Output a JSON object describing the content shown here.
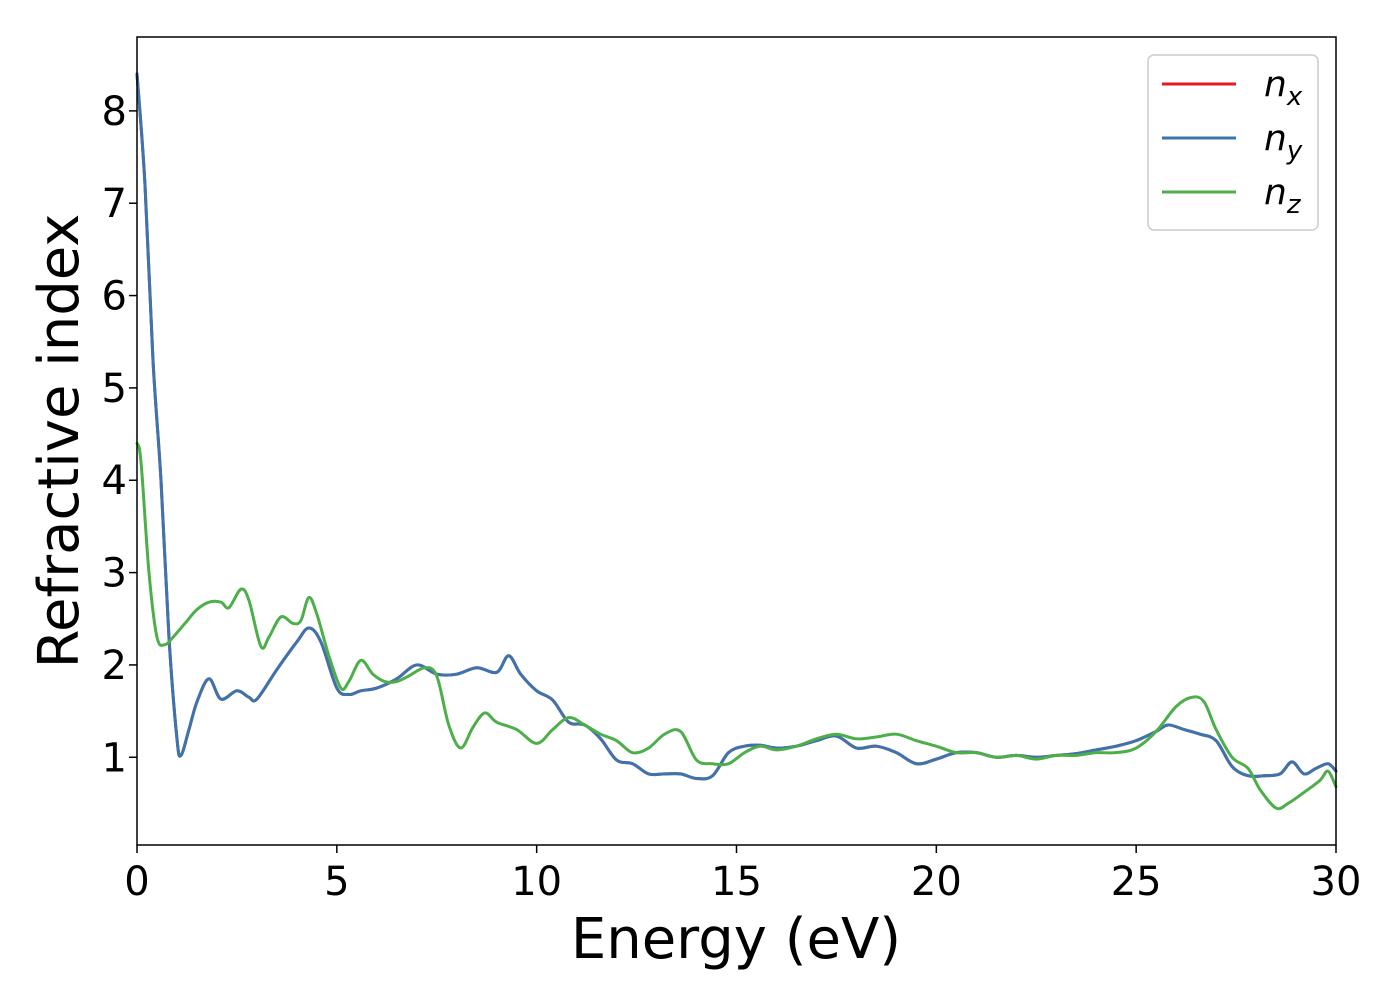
{
  "chart_data": {
    "type": "line",
    "title": "",
    "xlabel": "Energy (eV)",
    "ylabel": "Refractive index",
    "xlim": [
      0,
      30
    ],
    "ylim": [
      0.05,
      8.8
    ],
    "xticks": [
      "0",
      "5",
      "10",
      "15",
      "20",
      "25",
      "30"
    ],
    "yticks": [
      "1",
      "2",
      "3",
      "4",
      "5",
      "6",
      "7",
      "8"
    ],
    "grid": false,
    "legend_placement": "top-right",
    "series": [
      {
        "name": "n_x",
        "legend_base": "n",
        "legend_sub": "x",
        "color": "#e41a1c",
        "x": [
          0,
          0.2,
          0.4,
          0.6,
          0.8,
          1.0,
          1.1,
          1.3,
          1.5,
          1.8,
          2.1,
          2.5,
          2.8,
          3.0,
          3.5,
          4.0,
          4.3,
          4.6,
          5.0,
          5.3,
          5.6,
          6.0,
          6.5,
          7.0,
          7.5,
          8.0,
          8.5,
          9.0,
          9.3,
          9.6,
          10.0,
          10.4,
          10.8,
          11.2,
          11.6,
          12.0,
          12.4,
          12.8,
          13.2,
          13.6,
          14.0,
          14.4,
          14.8,
          15.2,
          15.6,
          16.0,
          16.5,
          17.0,
          17.5,
          18.0,
          18.5,
          19.0,
          19.5,
          20.0,
          20.5,
          21.0,
          21.5,
          22.0,
          22.5,
          23.0,
          23.5,
          24.0,
          24.5,
          25.0,
          25.5,
          25.8,
          26.2,
          26.6,
          27.0,
          27.4,
          27.8,
          28.2,
          28.6,
          28.9,
          29.2,
          29.5,
          29.8,
          30.0
        ],
        "values": [
          8.4,
          7.2,
          5.3,
          4.0,
          2.3,
          1.2,
          1.02,
          1.3,
          1.6,
          1.85,
          1.63,
          1.72,
          1.65,
          1.63,
          1.95,
          2.25,
          2.4,
          2.25,
          1.75,
          1.68,
          1.72,
          1.75,
          1.85,
          2.0,
          1.9,
          1.9,
          1.97,
          1.92,
          2.1,
          1.9,
          1.72,
          1.62,
          1.38,
          1.35,
          1.2,
          0.97,
          0.93,
          0.82,
          0.82,
          0.82,
          0.77,
          0.8,
          1.05,
          1.12,
          1.13,
          1.1,
          1.12,
          1.18,
          1.23,
          1.1,
          1.12,
          1.05,
          0.93,
          0.98,
          1.05,
          1.05,
          1.0,
          1.02,
          1.0,
          1.02,
          1.04,
          1.08,
          1.12,
          1.18,
          1.28,
          1.35,
          1.3,
          1.25,
          1.18,
          0.9,
          0.8,
          0.8,
          0.82,
          0.95,
          0.82,
          0.88,
          0.93,
          0.85
        ]
      },
      {
        "name": "n_y",
        "legend_base": "n",
        "legend_sub": "y",
        "color": "#3b75af",
        "x": [
          0,
          0.2,
          0.4,
          0.6,
          0.8,
          1.0,
          1.1,
          1.3,
          1.5,
          1.8,
          2.1,
          2.5,
          2.8,
          3.0,
          3.5,
          4.0,
          4.3,
          4.6,
          5.0,
          5.3,
          5.6,
          6.0,
          6.5,
          7.0,
          7.5,
          8.0,
          8.5,
          9.0,
          9.3,
          9.6,
          10.0,
          10.4,
          10.8,
          11.2,
          11.6,
          12.0,
          12.4,
          12.8,
          13.2,
          13.6,
          14.0,
          14.4,
          14.8,
          15.2,
          15.6,
          16.0,
          16.5,
          17.0,
          17.5,
          18.0,
          18.5,
          19.0,
          19.5,
          20.0,
          20.5,
          21.0,
          21.5,
          22.0,
          22.5,
          23.0,
          23.5,
          24.0,
          24.5,
          25.0,
          25.5,
          25.8,
          26.2,
          26.6,
          27.0,
          27.4,
          27.8,
          28.2,
          28.6,
          28.9,
          29.2,
          29.5,
          29.8,
          30.0
        ],
        "values": [
          8.4,
          7.2,
          5.3,
          4.0,
          2.3,
          1.2,
          1.02,
          1.3,
          1.6,
          1.85,
          1.63,
          1.72,
          1.65,
          1.63,
          1.95,
          2.25,
          2.4,
          2.25,
          1.75,
          1.68,
          1.72,
          1.75,
          1.85,
          2.0,
          1.9,
          1.9,
          1.97,
          1.92,
          2.1,
          1.9,
          1.72,
          1.62,
          1.38,
          1.35,
          1.2,
          0.97,
          0.93,
          0.82,
          0.82,
          0.82,
          0.77,
          0.8,
          1.05,
          1.12,
          1.13,
          1.1,
          1.12,
          1.18,
          1.23,
          1.1,
          1.12,
          1.05,
          0.93,
          0.98,
          1.05,
          1.05,
          1.0,
          1.02,
          1.0,
          1.02,
          1.04,
          1.08,
          1.12,
          1.18,
          1.28,
          1.35,
          1.3,
          1.25,
          1.18,
          0.9,
          0.8,
          0.8,
          0.82,
          0.95,
          0.82,
          0.88,
          0.93,
          0.85
        ]
      },
      {
        "name": "n_z",
        "legend_base": "n",
        "legend_sub": "z",
        "color": "#4daf4a",
        "x": [
          0,
          0.1,
          0.3,
          0.5,
          0.7,
          0.9,
          1.2,
          1.5,
          1.8,
          2.1,
          2.3,
          2.6,
          2.8,
          3.1,
          3.3,
          3.6,
          3.9,
          4.1,
          4.3,
          4.5,
          4.8,
          5.1,
          5.3,
          5.6,
          5.9,
          6.2,
          6.5,
          6.8,
          7.2,
          7.5,
          7.8,
          8.1,
          8.4,
          8.7,
          9.0,
          9.5,
          10.0,
          10.4,
          10.8,
          11.2,
          11.6,
          12.0,
          12.4,
          12.8,
          13.2,
          13.6,
          14.0,
          14.4,
          14.8,
          15.2,
          15.6,
          16.0,
          16.5,
          17.0,
          17.5,
          18.0,
          18.5,
          19.0,
          19.5,
          20.0,
          20.5,
          21.0,
          21.5,
          22.0,
          22.5,
          23.0,
          23.5,
          24.0,
          24.5,
          25.0,
          25.5,
          26.0,
          26.4,
          26.7,
          27.0,
          27.4,
          27.8,
          28.1,
          28.5,
          28.8,
          29.2,
          29.6,
          29.8,
          30.0
        ],
        "values": [
          4.4,
          4.2,
          3.0,
          2.3,
          2.22,
          2.3,
          2.45,
          2.6,
          2.68,
          2.68,
          2.62,
          2.82,
          2.7,
          2.2,
          2.3,
          2.52,
          2.45,
          2.48,
          2.73,
          2.55,
          2.1,
          1.75,
          1.82,
          2.05,
          1.9,
          1.82,
          1.82,
          1.88,
          1.97,
          1.88,
          1.35,
          1.1,
          1.32,
          1.48,
          1.38,
          1.3,
          1.15,
          1.3,
          1.43,
          1.35,
          1.25,
          1.18,
          1.05,
          1.1,
          1.25,
          1.28,
          0.97,
          0.93,
          0.93,
          1.05,
          1.12,
          1.08,
          1.12,
          1.2,
          1.25,
          1.2,
          1.22,
          1.25,
          1.18,
          1.12,
          1.05,
          1.05,
          1.0,
          1.02,
          0.98,
          1.02,
          1.02,
          1.05,
          1.05,
          1.1,
          1.28,
          1.55,
          1.65,
          1.6,
          1.3,
          1.0,
          0.88,
          0.65,
          0.45,
          0.5,
          0.62,
          0.75,
          0.85,
          0.68
        ]
      }
    ]
  }
}
